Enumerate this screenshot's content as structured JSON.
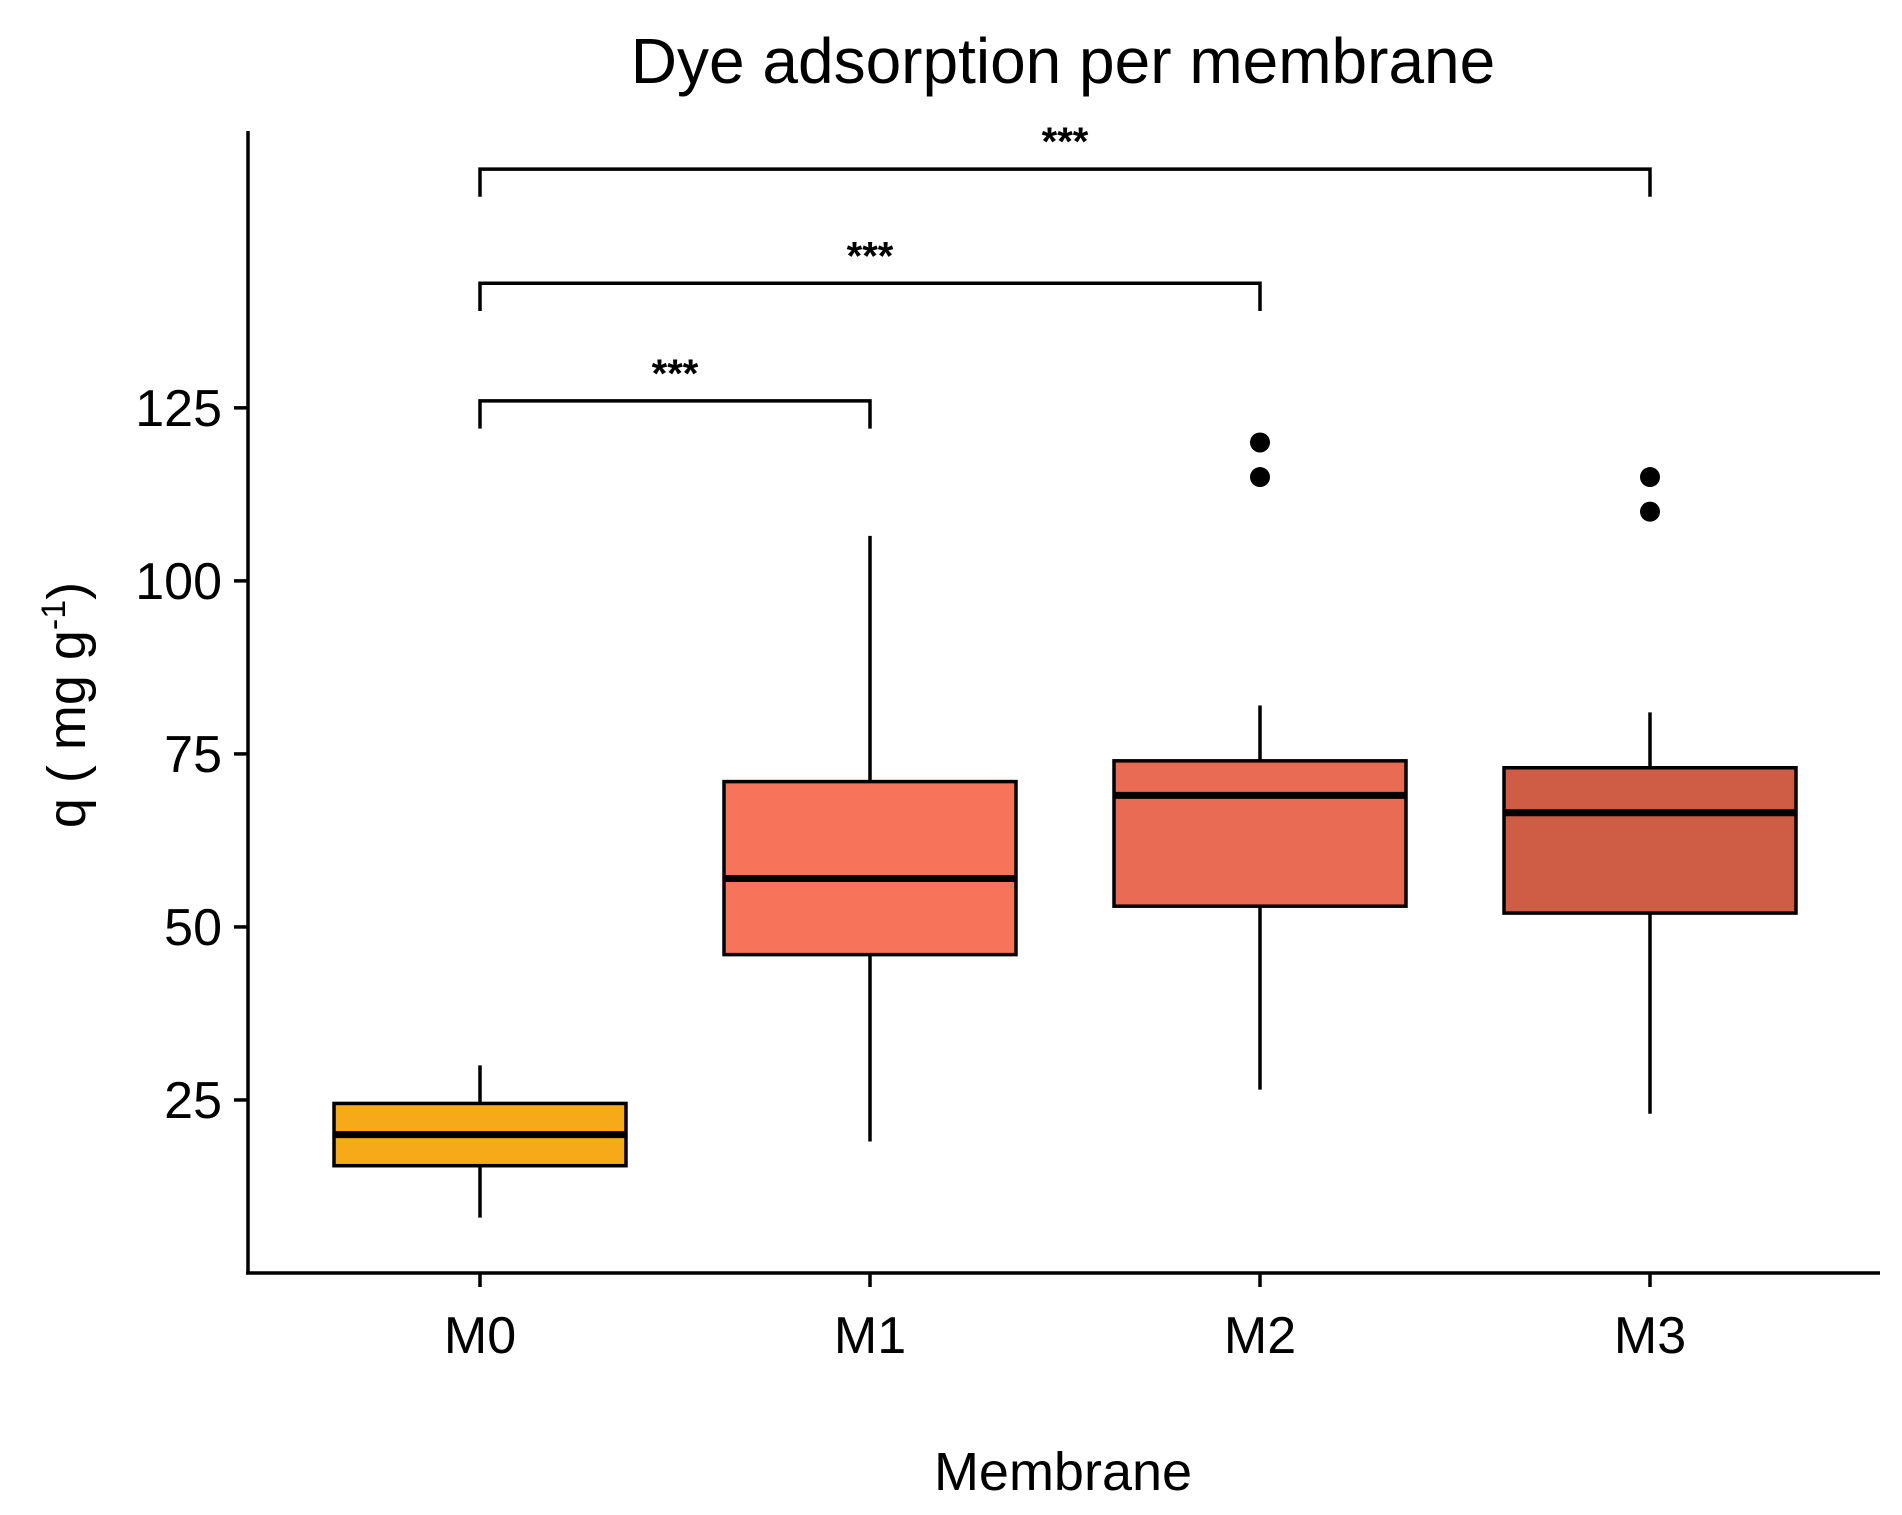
{
  "chart_data": {
    "type": "boxplot",
    "title": "Dye adsorption per membrane",
    "xlabel": "Membrane",
    "ylabel": {
      "main": "q ( mg g",
      "superscript": "-1",
      "close": ")"
    },
    "ylim": [
      0,
      165
    ],
    "yticks": [
      "25",
      "50",
      "75",
      "100",
      "125"
    ],
    "categories": [
      "M0",
      "M1",
      "M2",
      "M3"
    ],
    "boxes": [
      {
        "name": "M0",
        "whisker_low": 8,
        "q1": 15.5,
        "median": 20,
        "q3": 24.5,
        "whisker_high": 30,
        "outliers": [],
        "fill": "#F7AA17"
      },
      {
        "name": "M1",
        "whisker_low": 19,
        "q1": 46,
        "median": 57,
        "q3": 71,
        "whisker_high": 106.5,
        "outliers": [],
        "fill": "#F6745A"
      },
      {
        "name": "M2",
        "whisker_low": 26.5,
        "q1": 53,
        "median": 69,
        "q3": 74,
        "whisker_high": 82,
        "outliers": [
          115,
          120
        ],
        "fill": "#EA6B54"
      },
      {
        "name": "M3",
        "whisker_low": 23,
        "q1": 52,
        "median": 66.5,
        "q3": 73,
        "whisker_high": 81,
        "outliers": [
          110,
          115
        ],
        "fill": "#CF5C45"
      }
    ],
    "significance": [
      {
        "from": "M0",
        "to": "M1",
        "level": 126,
        "tick_low": 122,
        "label": "***"
      },
      {
        "from": "M0",
        "to": "M2",
        "level": 143,
        "tick_low": 139,
        "label": "***"
      },
      {
        "from": "M0",
        "to": "M3",
        "level": 159.5,
        "tick_low": 155.5,
        "label": "***"
      }
    ]
  }
}
